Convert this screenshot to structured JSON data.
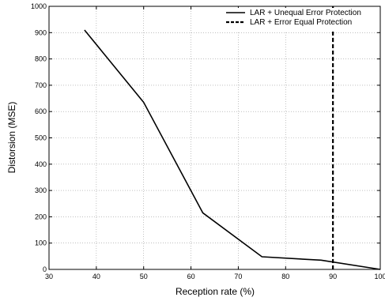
{
  "chart_data": {
    "type": "line",
    "title": "",
    "xlabel": "Reception rate (%)",
    "ylabel": "Distorsion (MSE)",
    "xlim": [
      30,
      100
    ],
    "ylim": [
      0,
      1000
    ],
    "xticks": [
      30,
      40,
      50,
      60,
      70,
      80,
      90,
      100
    ],
    "yticks": [
      0,
      100,
      200,
      300,
      400,
      500,
      600,
      700,
      800,
      900,
      1000
    ],
    "grid": true,
    "legend_position": "top-right",
    "series": [
      {
        "name": "LAR + Unequal Error Protection",
        "style": "solid",
        "color": "#000000",
        "x": [
          37.5,
          50,
          62.5,
          75,
          87.5,
          100
        ],
        "y": [
          910,
          635,
          215,
          48,
          35,
          0
        ]
      },
      {
        "name": "LAR + Error Equal Protection",
        "style": "dashed",
        "color": "#000000",
        "x": [
          90,
          90
        ],
        "y": [
          0,
          1000
        ]
      }
    ]
  }
}
